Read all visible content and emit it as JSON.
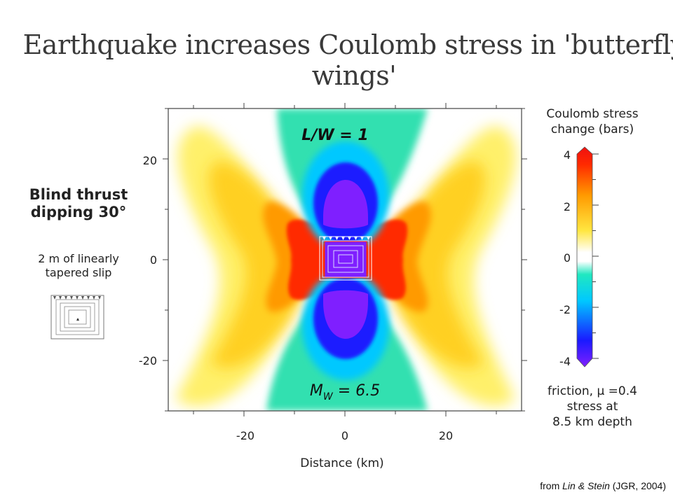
{
  "slide": {
    "title": "Earthquake increases Coulomb stress in 'butterfly wings'",
    "credit_prefix": "from ",
    "credit_authors": "Lin & Stein",
    "credit_suffix": " (JGR, 2004)"
  },
  "side_panel": {
    "heading_line1": "Blind thrust",
    "heading_line2": "dipping 30°",
    "sub_line1": "2 m of linearly",
    "sub_line2": "tapered slip"
  },
  "map": {
    "label_top": "L/W = 1",
    "label_bottom_symbol": "M",
    "label_bottom_subscript": "W",
    "label_bottom_rest": " = 6.5",
    "xlabel": "Distance (km)",
    "x_ticks": [
      "-20",
      "0",
      "20"
    ],
    "y_ticks": [
      "20",
      "0",
      "-20"
    ],
    "x_range": [
      -35,
      35
    ],
    "y_range": [
      -30,
      30
    ]
  },
  "colorbar": {
    "title_line1": "Coulomb stress",
    "title_line2": "change (bars)",
    "ticks": [
      "4",
      "2",
      "0",
      "-2",
      "-4"
    ],
    "range": [
      -4,
      4
    ],
    "colors": [
      "#7f1fff",
      "#1a1aff",
      "#00c8ff",
      "#20e8c0",
      "#ffffff",
      "#ffe640",
      "#ff9a00",
      "#ff2a00",
      "#f01010"
    ],
    "note_line1": "friction, μ =0.4",
    "note_line2": "stress at",
    "note_line3": "8.5 km depth"
  }
}
